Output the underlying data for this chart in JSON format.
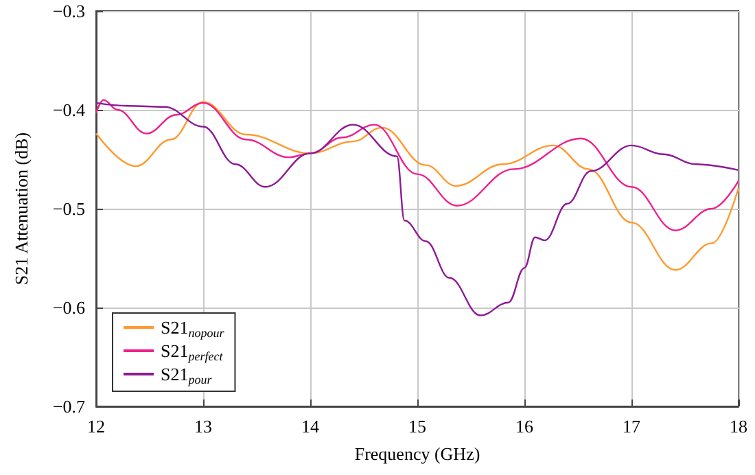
{
  "chart_data": {
    "type": "line",
    "xlabel": "Frequency (GHz)",
    "ylabel": "S21 Attenuation (dB)",
    "xlim": [
      12,
      18
    ],
    "xticks": [
      12,
      13,
      14,
      15,
      16,
      17,
      18
    ],
    "ylim": [
      -0.7,
      -0.3
    ],
    "yticks": [
      -0.7,
      -0.6,
      -0.5,
      -0.4,
      -0.3
    ],
    "grid": true,
    "legend": "bottom left",
    "marker": "none",
    "line_style": "solid",
    "series": [
      {
        "name": "S21$_{nopour}$",
        "color": "#ff9a2e",
        "x": [
          12,
          12.37,
          12.7,
          13.0,
          13.4,
          14.0,
          14.4,
          14.67,
          15.08,
          15.36,
          15.8,
          16.27,
          16.6,
          17.0,
          17.41,
          17.75,
          18
        ],
        "values": [
          -0.424,
          -0.457,
          -0.43,
          -0.392,
          -0.425,
          -0.444,
          -0.432,
          -0.418,
          -0.456,
          -0.477,
          -0.455,
          -0.436,
          -0.46,
          -0.514,
          -0.562,
          -0.535,
          -0.479
        ]
      },
      {
        "name": "S21$_{perfect}$",
        "color": "#f0208c",
        "x": [
          12,
          12.07,
          12.2,
          12.47,
          12.75,
          13.0,
          13.4,
          13.8,
          14.0,
          14.3,
          14.6,
          15.0,
          15.37,
          15.9,
          16.53,
          17.0,
          17.41,
          17.75,
          18
        ],
        "values": [
          -0.403,
          -0.39,
          -0.4,
          -0.424,
          -0.405,
          -0.393,
          -0.43,
          -0.448,
          -0.444,
          -0.428,
          -0.415,
          -0.465,
          -0.497,
          -0.46,
          -0.429,
          -0.478,
          -0.522,
          -0.5,
          -0.472
        ]
      },
      {
        "name": "S21$_{pour}$",
        "color": "#8e1a96",
        "x": [
          12,
          12.3,
          12.64,
          13.0,
          13.3,
          13.58,
          14.0,
          14.4,
          14.81,
          14.88,
          15.08,
          15.3,
          15.59,
          15.85,
          16.0,
          16.1,
          16.19,
          16.4,
          16.62,
          17.0,
          17.3,
          17.6,
          18
        ],
        "values": [
          -0.393,
          -0.396,
          -0.397,
          -0.417,
          -0.455,
          -0.478,
          -0.444,
          -0.415,
          -0.447,
          -0.512,
          -0.533,
          -0.57,
          -0.608,
          -0.595,
          -0.56,
          -0.529,
          -0.532,
          -0.495,
          -0.462,
          -0.436,
          -0.445,
          -0.455,
          -0.461
        ]
      }
    ]
  }
}
